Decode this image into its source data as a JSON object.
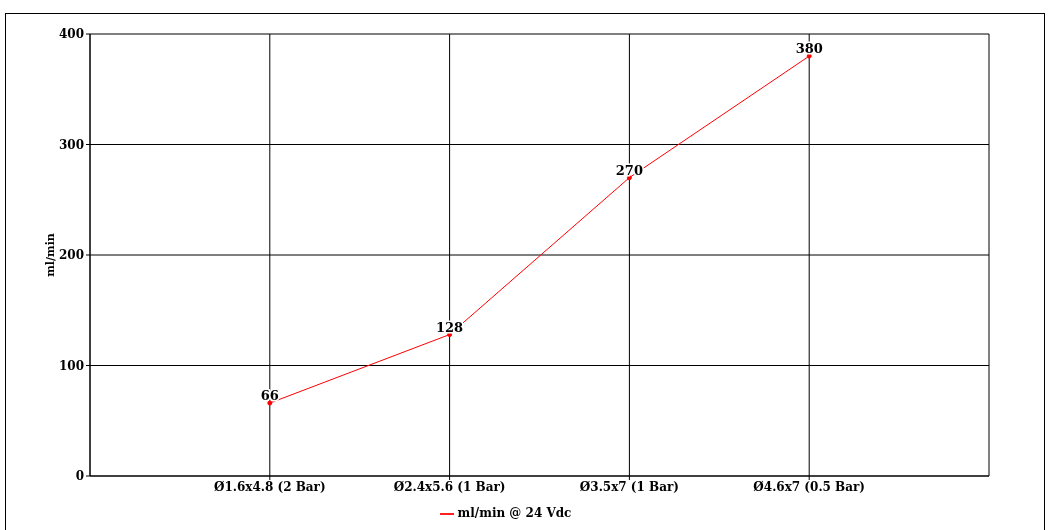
{
  "chart_data": {
    "type": "line",
    "ylabel": "ml/min",
    "categories": [
      "Ø1.6x4.8 (2 Bar)",
      "Ø2.4x5.6 (1 Bar)",
      "Ø3.5x7 (1 Bar)",
      "Ø4.6x7 (0.5 Bar)"
    ],
    "series": [
      {
        "name": "ml/min @ 24 Vdc",
        "color": "#ff0000",
        "values": [
          66,
          128,
          270,
          380
        ]
      }
    ],
    "ylim": [
      0,
      400
    ],
    "yticks": [
      0,
      100,
      200,
      300,
      400
    ],
    "grid": true,
    "legend": "bottom",
    "data_labels": true,
    "marker": "circle",
    "line_style": "solid"
  }
}
